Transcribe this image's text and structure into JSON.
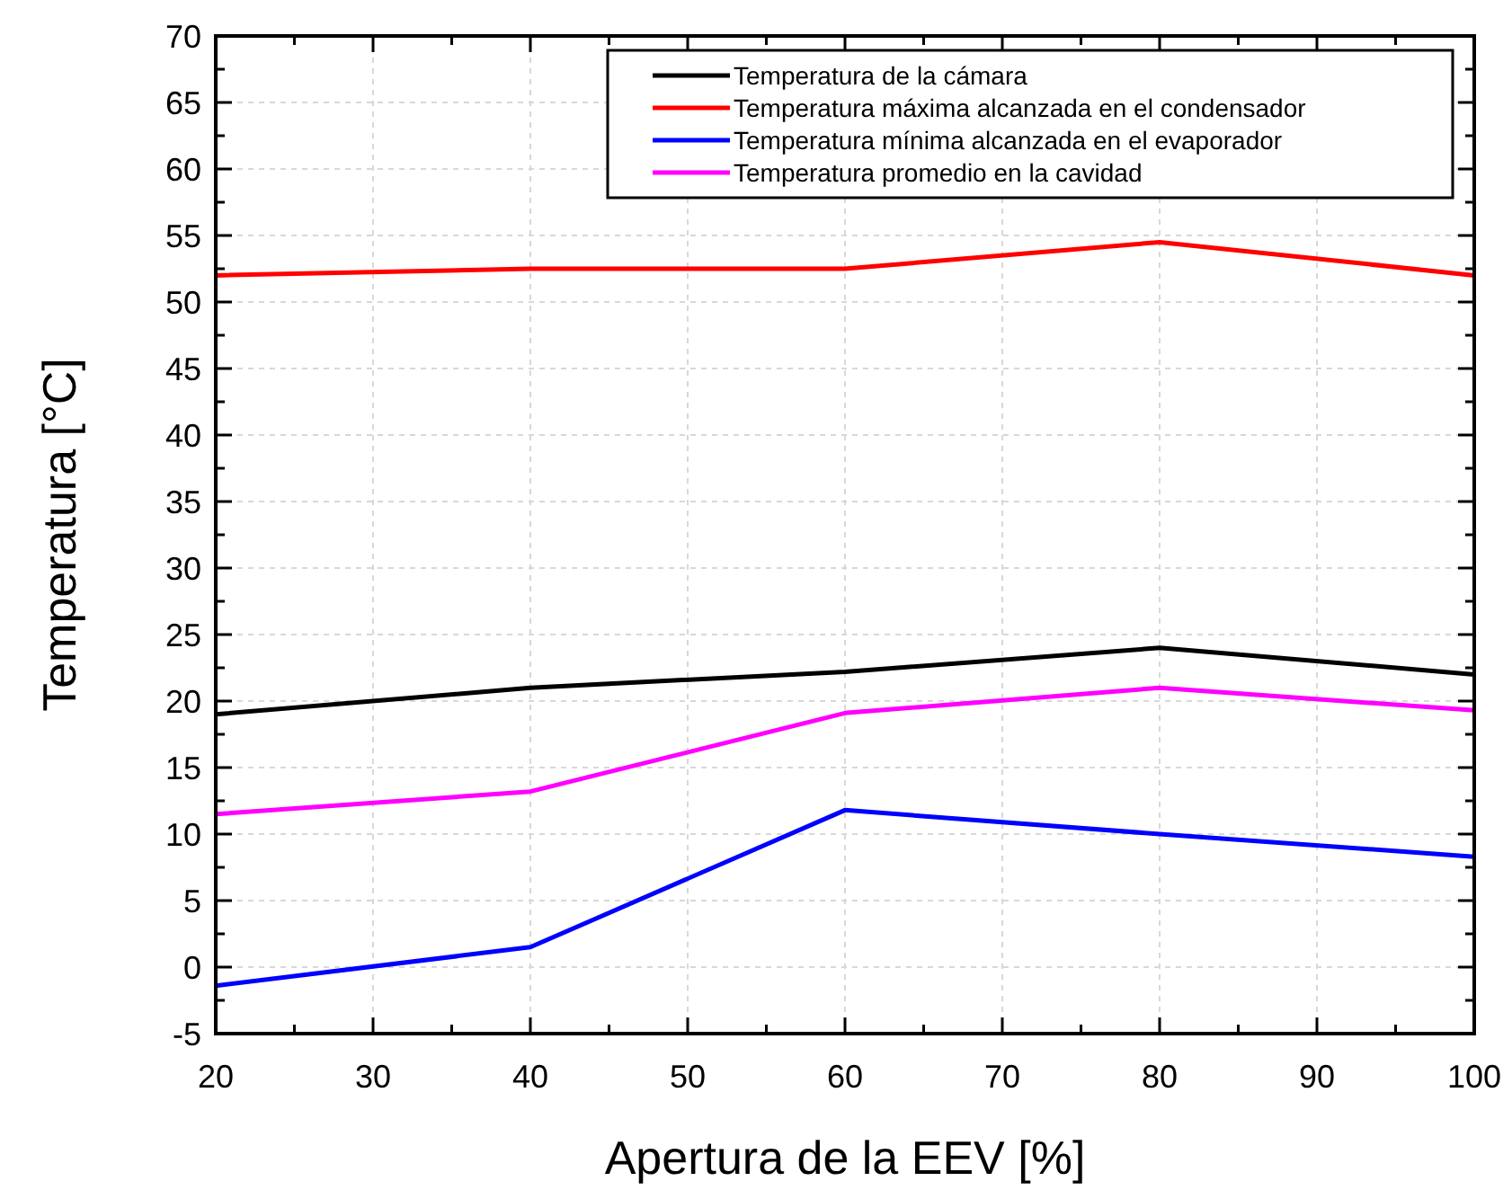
{
  "chart_data": {
    "type": "line",
    "xlabel": "Apertura de la EEV [%]",
    "ylabel": "Temperatura [°C]",
    "x": [
      20,
      40,
      60,
      80,
      100
    ],
    "series": [
      {
        "name": "Temperatura de la cámara",
        "color": "#000000",
        "values": [
          19,
          21,
          22.2,
          24,
          22
        ]
      },
      {
        "name": "Temperatura máxima alcanzada en el condensador",
        "color": "#ff0000",
        "values": [
          52,
          52.5,
          52.5,
          54.5,
          52
        ]
      },
      {
        "name": "Temperatura mínima alcanzada en el evaporador",
        "color": "#0000ff",
        "values": [
          -1.4,
          1.5,
          11.8,
          10,
          8.3
        ]
      },
      {
        "name": "Temperatura promedio en la cavidad",
        "color": "#ff00ff",
        "values": [
          11.5,
          13.2,
          19.1,
          21,
          19.3
        ]
      }
    ],
    "xlim": [
      20,
      100
    ],
    "xticks": [
      20,
      30,
      40,
      50,
      60,
      70,
      80,
      90,
      100
    ],
    "ylim": [
      -5,
      70
    ],
    "yticks": [
      -5,
      0,
      5,
      10,
      15,
      20,
      25,
      30,
      35,
      40,
      45,
      50,
      55,
      60,
      65,
      70
    ],
    "grid": true,
    "legend": "top right",
    "marker": "none",
    "line_style": "solid"
  }
}
